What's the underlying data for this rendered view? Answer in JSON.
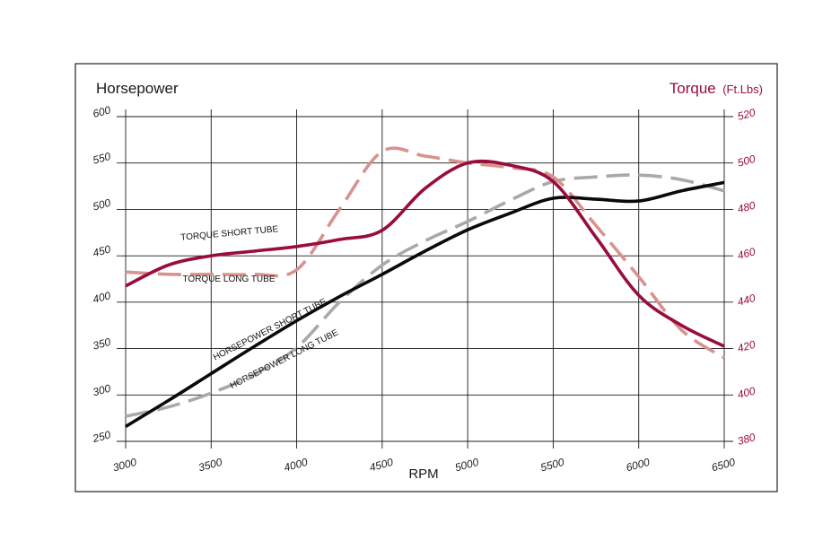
{
  "chart_data": {
    "type": "line",
    "left_axis_title": "Horsepower",
    "right_axis_title_main": "Torque",
    "right_axis_title_unit": "(Ft.Lbs)",
    "xlabel": "RPM",
    "x_ticks": [
      "3000",
      "3500",
      "4000",
      "4500",
      "5000",
      "5500",
      "6000",
      "6500"
    ],
    "left_ticks": [
      "250",
      "300",
      "350",
      "400",
      "450",
      "500",
      "550",
      "600"
    ],
    "right_ticks": [
      "380",
      "400",
      "420",
      "440",
      "460",
      "480",
      "500",
      "520"
    ],
    "xlim": [
      3000,
      6500
    ],
    "ylim_left": [
      250,
      600
    ],
    "ylim_right": [
      380,
      520
    ],
    "grid": true,
    "colors": {
      "torque_short": "#980d3c",
      "torque_long": "#d9928f",
      "hp_short": "#0a0a0a",
      "hp_long": "#a9a9ad",
      "torque_axis": "#980d3c",
      "frame": "#222222"
    },
    "series": [
      {
        "name": "TORQUE SHORT TUBE",
        "axis": "right",
        "style": "solid",
        "x": [
          3000,
          3250,
          3500,
          3750,
          4000,
          4250,
          4500,
          4750,
          5000,
          5250,
          5500,
          5750,
          6000,
          6250,
          6500
        ],
        "y": [
          447,
          456,
          460,
          462,
          464,
          467,
          471,
          489,
          500,
          499,
          492,
          468,
          443,
          430,
          421
        ]
      },
      {
        "name": "TORQUE LONG TUBE",
        "axis": "right",
        "style": "dashed",
        "x": [
          3000,
          3250,
          3500,
          3750,
          4000,
          4250,
          4500,
          4750,
          5000,
          5250,
          5500,
          5750,
          6000,
          6250,
          6500
        ],
        "y": [
          453,
          452,
          452,
          452,
          454,
          480,
          505,
          503,
          500,
          498,
          494,
          473,
          451,
          428,
          416
        ]
      },
      {
        "name": "HORSEPOWER SHORT TUBE",
        "axis": "left",
        "style": "solid",
        "x": [
          3000,
          3250,
          3500,
          3750,
          4000,
          4250,
          4500,
          4750,
          5000,
          5250,
          5500,
          5750,
          6000,
          6250,
          6500
        ],
        "y": [
          266,
          294,
          323,
          352,
          380,
          406,
          430,
          455,
          478,
          496,
          512,
          511,
          509,
          520,
          529
        ]
      },
      {
        "name": "HORSEPOWER LONG TUBE",
        "axis": "left",
        "style": "dashed",
        "x": [
          3000,
          3250,
          3500,
          3750,
          4000,
          4250,
          4500,
          4750,
          5000,
          5250,
          5500,
          5750,
          6000,
          6250,
          6500
        ],
        "y": [
          277,
          287,
          302,
          322,
          351,
          400,
          440,
          466,
          487,
          510,
          530,
          535,
          537,
          532,
          520
        ]
      }
    ]
  }
}
